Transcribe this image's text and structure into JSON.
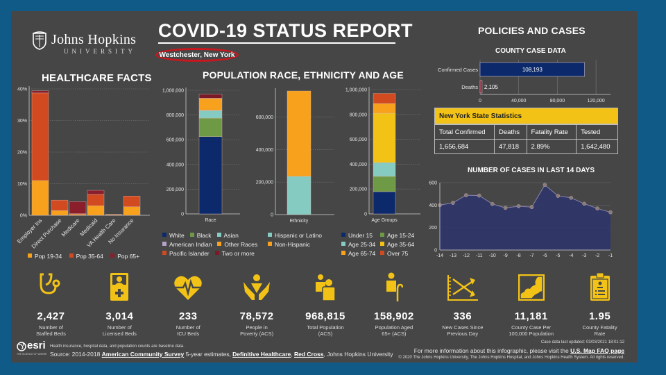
{
  "header": {
    "org_name": "Johns Hopkins",
    "org_sub": "UNIVERSITY",
    "title": "COVID-19 STATUS REPORT",
    "location": "Westchester, New York"
  },
  "healthcare": {
    "title": "HEALTHCARE FACTS"
  },
  "population": {
    "title": "POPULATION RACE, ETHNICITY AND AGE"
  },
  "policies": {
    "title": "POLICIES AND CASES",
    "county_title": "COUNTY CASE DATA",
    "nys_stats": {
      "title": "New York State Statistics",
      "headers": [
        "Total Confirmed",
        "Deaths",
        "Fatality Rate",
        "Tested"
      ],
      "values": [
        "1,656,684",
        "47,818",
        "2.89%",
        "1,642,480"
      ]
    },
    "cases_title": "NUMBER OF CASES IN LAST 14 DAYS"
  },
  "colors": {
    "background_frame": "#0f5a87",
    "panel": "#464646",
    "accent_yellow": "#f2c316",
    "location_ring": "#c8171e"
  },
  "chart_data": [
    {
      "id": "healthcare",
      "type": "bar",
      "stacked": true,
      "title": "HEALTHCARE FACTS",
      "categories": [
        "Employer Ins",
        "Direct Purchase",
        "Medicare",
        "Medicaid",
        "VA Health Care",
        "No Insurance"
      ],
      "series": [
        {
          "name": "Pop 19-34",
          "color": "#f7a11c",
          "values": [
            11.0,
            1.5,
            0.3,
            3.0,
            0.2,
            2.7
          ]
        },
        {
          "name": "Pop 35-64",
          "color": "#d24a20",
          "values": [
            27.7,
            3.3,
            0.2,
            3.6,
            0.1,
            3.4
          ]
        },
        {
          "name": "Pop 65+",
          "color": "#8b1e2b",
          "values": [
            0.7,
            0.0,
            3.8,
            1.3,
            0.0,
            0.0
          ]
        }
      ],
      "ylim": [
        0,
        40
      ],
      "yticks": [
        "0%",
        "10%",
        "20%",
        "30%",
        "40%"
      ],
      "ytick_values": [
        0,
        10,
        20,
        30,
        40
      ],
      "grid": true,
      "legend": "bottom"
    },
    {
      "id": "race",
      "type": "bar",
      "stacked": true,
      "categories": [
        "Race"
      ],
      "series": [
        {
          "name": "White",
          "color": "#0c2a6b",
          "values": [
            625000
          ]
        },
        {
          "name": "Black",
          "color": "#6e9a45",
          "values": [
            150000
          ]
        },
        {
          "name": "Asian",
          "color": "#86cbc2",
          "values": [
            60000
          ]
        },
        {
          "name": "American Indian",
          "color": "#b3a2c7",
          "values": [
            3000
          ]
        },
        {
          "name": "Other Races",
          "color": "#f7a11c",
          "values": [
            97000
          ]
        },
        {
          "name": "Pacific Islander",
          "color": "#d24a20",
          "values": [
            1000
          ]
        },
        {
          "name": "Two or more",
          "color": "#7a1a26",
          "values": [
            32000
          ]
        }
      ],
      "ylim": [
        0,
        1000000
      ],
      "yticks": [
        "0",
        "200,000",
        "400,000",
        "600,000",
        "800,000",
        "1,000,000"
      ],
      "ytick_values": [
        0,
        200000,
        400000,
        600000,
        800000,
        1000000
      ],
      "xlabel": "Race",
      "grid": true,
      "legend": "bottom"
    },
    {
      "id": "ethnicity",
      "type": "bar",
      "stacked": true,
      "categories": [
        "Ethnicity"
      ],
      "series": [
        {
          "name": "Hispanic or Latino",
          "color": "#86cbc2",
          "values": [
            235000
          ]
        },
        {
          "name": "Non-Hispanic",
          "color": "#f7a11c",
          "values": [
            525000
          ]
        }
      ],
      "ylim": [
        0,
        760000
      ],
      "yticks": [
        "0",
        "200,000",
        "400,000",
        "600,000"
      ],
      "ytick_values": [
        0,
        200000,
        400000,
        600000
      ],
      "xlabel": "Ethnicity",
      "grid": true,
      "legend": "bottom"
    },
    {
      "id": "age",
      "type": "bar",
      "stacked": true,
      "categories": [
        "Age Groups"
      ],
      "series": [
        {
          "name": "Under 15",
          "color": "#0c2a6b",
          "values": [
            179000
          ]
        },
        {
          "name": "Age 15-24",
          "color": "#6e9a45",
          "values": [
            123000
          ]
        },
        {
          "name": "Age 25-34",
          "color": "#86cbc2",
          "values": [
            111000
          ]
        },
        {
          "name": "Age 35-64",
          "color": "#f2c316",
          "values": [
            397000
          ]
        },
        {
          "name": "Age 65-74",
          "color": "#f7a11c",
          "values": [
            78000
          ]
        },
        {
          "name": "Over 75",
          "color": "#d24a20",
          "values": [
            81000
          ]
        }
      ],
      "ylim": [
        0,
        1000000
      ],
      "yticks": [
        "0",
        "200,000",
        "400,000",
        "600,000",
        "800,000",
        "1,000,000"
      ],
      "ytick_values": [
        0,
        200000,
        400000,
        600000,
        800000,
        1000000
      ],
      "xlabel": "Age Groups",
      "grid": true,
      "legend": "bottom"
    },
    {
      "id": "county",
      "type": "bar",
      "orientation": "horizontal",
      "title": "COUNTY CASE DATA",
      "categories": [
        "Confirmed Cases",
        "Deaths"
      ],
      "values": [
        108193,
        2105
      ],
      "value_labels": [
        "108,193",
        "2,105"
      ],
      "colors": [
        "#0c2a6b",
        "#8b1e2b"
      ],
      "xlim": [
        0,
        135000
      ],
      "xticks": [
        "0",
        "40,000",
        "80,000",
        "120,000"
      ],
      "xtick_values": [
        0,
        40000,
        80000,
        120000
      ],
      "grid": true
    },
    {
      "id": "cases14",
      "type": "area",
      "title": "NUMBER OF CASES IN LAST 14 DAYS",
      "x": [
        -14,
        -13,
        -12,
        -11,
        -10,
        -9,
        -8,
        -7,
        -6,
        -5,
        -4,
        -3,
        -2,
        -1
      ],
      "xticks": [
        "-14",
        "-13",
        "-12",
        "-11",
        "-10",
        "-9",
        "-8",
        "-7",
        "-6",
        "-5",
        "-4",
        "-3",
        "-2",
        "-1"
      ],
      "values": [
        400,
        420,
        488,
        485,
        410,
        375,
        390,
        382,
        580,
        482,
        465,
        412,
        370,
        336
      ],
      "ylim": [
        0,
        600
      ],
      "yticks": [
        "0",
        "200",
        "400",
        "600"
      ],
      "ytick_values": [
        0,
        200,
        400,
        600
      ],
      "fill": "#2f3668",
      "line": "#8a86b0",
      "grid": true
    }
  ],
  "stats": [
    {
      "icon": "stethoscope-icon",
      "value": "2,427",
      "label1": "Number of",
      "label2": "Staffed Beds"
    },
    {
      "icon": "hospital-bed-icon",
      "value": "3,014",
      "label1": "Number of",
      "label2": "Licensed Beds"
    },
    {
      "icon": "heart-pulse-icon",
      "value": "233",
      "label1": "Number of",
      "label2": "ICU Beds"
    },
    {
      "icon": "hands-person-icon",
      "value": "78,572",
      "label1": "People in",
      "label2": "Poverty (ACS)"
    },
    {
      "icon": "people-group-icon",
      "value": "968,815",
      "label1": "Total Population",
      "label2": "(ACS)"
    },
    {
      "icon": "elderly-person-icon",
      "value": "158,902",
      "label1": "Population Aged",
      "label2": "65+ (ACS)"
    },
    {
      "icon": "trend-chart-icon",
      "value": "336",
      "label1": "New Cases Since",
      "label2": "Previous Day"
    },
    {
      "icon": "county-map-icon",
      "value": "11,181",
      "label1": "County Case Per",
      "label2": "100,000 Population"
    },
    {
      "icon": "clipboard-icon",
      "value": "1.95",
      "label1": "County Fatality",
      "label2": "Rate"
    }
  ],
  "footer": {
    "esri_label": "esri",
    "esri_tagline": "THE SCIENCE OF WHERE",
    "note": "Health insurance, hospital data, and population counts are baseline data.",
    "source_prefix": "Source: 2014-2018 ",
    "source_link1": "American Community Survey",
    "source_mid": " 5-year estimates, ",
    "source_link2": "Definitive Healthcare",
    "source_sep": ", ",
    "source_link3": "Red Cross",
    "source_suffix": ", Johns Hopkins University",
    "updated": "Case data last updated: 03/03/2021 18:01:12",
    "more_info": "For more information about this infographic, please visit the ",
    "faq_link": "U.S. Map FAQ page",
    "copyright": "© 2020 The Johns Hopkins University, The Johns Hopkins Hospital, and Johns Hopkins Health System. All rights reserved."
  }
}
